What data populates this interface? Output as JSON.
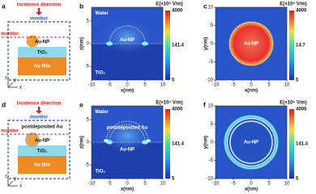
{
  "panels": {
    "a": {
      "letter": "a",
      "incidence": "Incidence direction",
      "monitor_top": "monitor",
      "monitor_side": "monitor",
      "nanoparticle": "Au-NP",
      "tio2": "TiO₂",
      "film": "Au film",
      "axes": [
        "z",
        "x",
        "y"
      ]
    },
    "d": {
      "letter": "d",
      "incidence": "Incidence direction",
      "monitor_top": "monitor",
      "monitor_side": "monitor",
      "shell": "postdeposited Au",
      "nanoparticle": "Au-NP",
      "tio2": "TiO₂",
      "film": "Au film",
      "axes": [
        "z",
        "x",
        "y"
      ]
    },
    "maps": [
      {
        "letter": "b",
        "xlabel": "x(nm)",
        "ylabel": "z(nm)",
        "xlim": [
          -10,
          10
        ],
        "ylim": [
          -8,
          8
        ],
        "xticks": [
          -10,
          -5,
          0,
          5,
          10
        ],
        "yticks": [
          5,
          0,
          -5
        ],
        "colorbar_title": "E(×10⁶ V/m)",
        "colorbar_ticks": [
          4000,
          141.4,
          5
        ],
        "labels": [
          "Water",
          "Au-NP",
          "TiO₂"
        ]
      },
      {
        "letter": "c",
        "xlabel": "x(nm)",
        "ylabel": "y(nm)",
        "xlim": [
          -10,
          10
        ],
        "ylim": [
          -10,
          10
        ],
        "xticks": [
          -10,
          -5,
          0,
          5,
          10
        ],
        "yticks": [
          10,
          5,
          0,
          -5,
          -10
        ],
        "colorbar_title": "E(×10⁶ V/m)",
        "colorbar_ticks": [
          4000,
          14.7,
          5
        ],
        "labels": [
          "Au-NP"
        ]
      },
      {
        "letter": "e",
        "xlabel": "x(nm)",
        "ylabel": "z(nm)",
        "xlim": [
          -10,
          10
        ],
        "ylim": [
          -8,
          8
        ],
        "xticks": [
          -10,
          -5,
          0,
          5,
          10
        ],
        "yticks": [
          5,
          0,
          -5
        ],
        "colorbar_title": "E(×10⁶ V/m)",
        "colorbar_ticks": [
          4000,
          141.4,
          5
        ],
        "labels": [
          "Water",
          "postdeposited Au",
          "Au-NP",
          "TiO₂"
        ]
      },
      {
        "letter": "f",
        "xlabel": "x(nm)",
        "ylabel": "y(nm)",
        "xlim": [
          -10,
          10
        ],
        "ylim": [
          -10,
          10
        ],
        "xticks": [
          -10,
          -5,
          0,
          5,
          10
        ],
        "yticks": [
          10,
          5,
          0,
          -5,
          -10
        ],
        "colorbar_title": "E(×10⁶ V/m)",
        "colorbar_ticks": [
          4000,
          141.4,
          5
        ],
        "labels": [
          "Au-NP"
        ]
      }
    ]
  }
}
